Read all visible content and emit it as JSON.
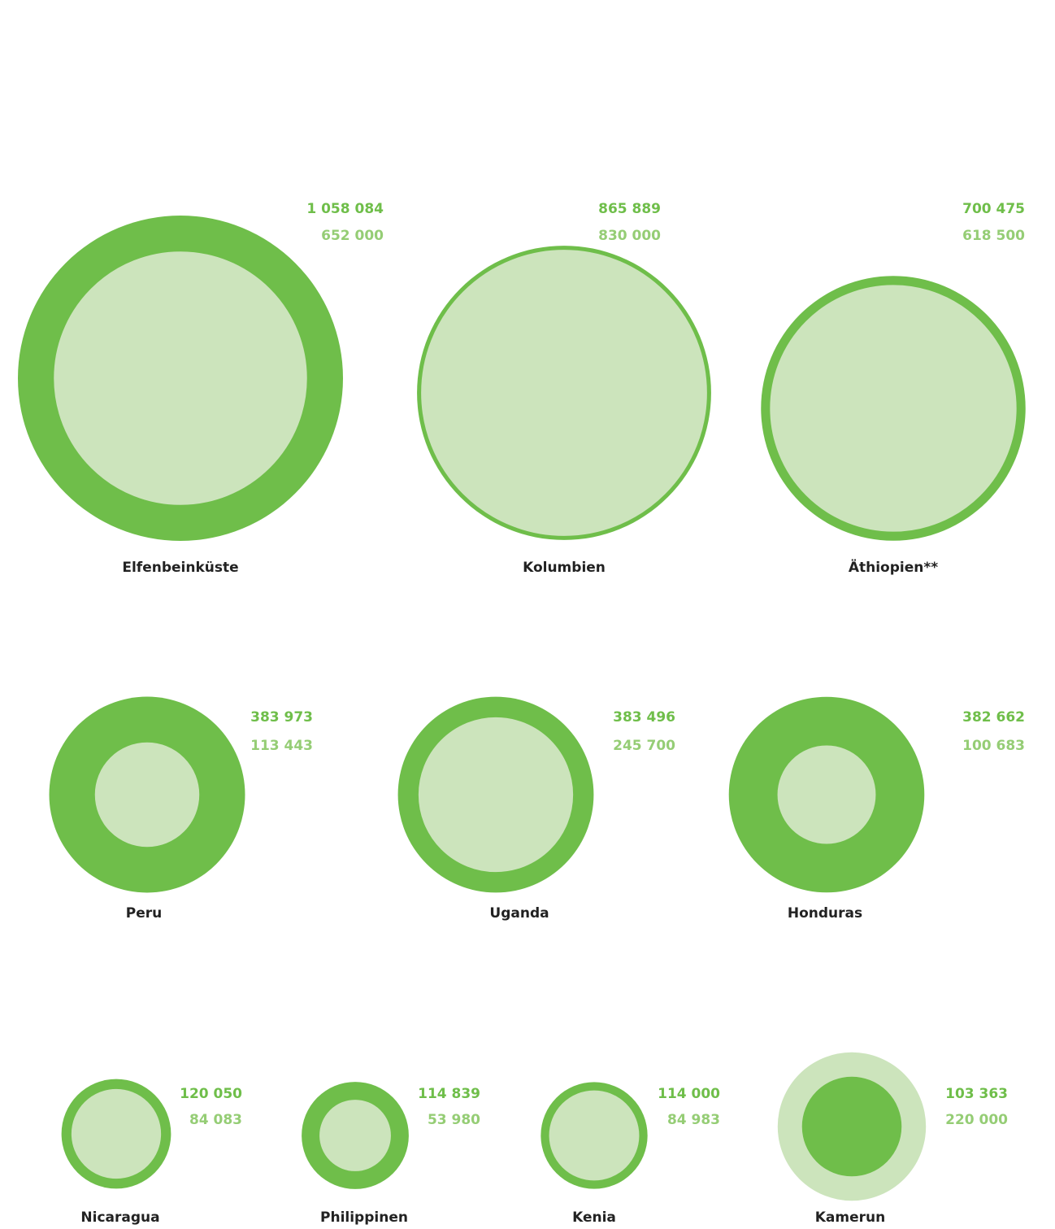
{
  "chart_data": {
    "type": "bubble",
    "categories": [
      "Elfenbeinküste",
      "Kolumbien",
      "Äthiopien**",
      "Peru",
      "Uganda",
      "Honduras",
      "Nicaragua",
      "Philippinen",
      "Kenia",
      "Kamerun"
    ],
    "series": [
      {
        "color": "#6fbe4a",
        "values": [
          1058084,
          865889,
          700475,
          383973,
          383496,
          382662,
          120050,
          114839,
          114000,
          103363
        ],
        "value_labels": [
          "1 058 084",
          "865 889",
          "700 475",
          "383 973",
          "383 496",
          "382 662",
          "120 050",
          "114 839",
          "114 000",
          "103 363"
        ]
      },
      {
        "color": "#cce4bc",
        "values": [
          652000,
          830000,
          618500,
          113443,
          245700,
          100683,
          84083,
          53980,
          84983,
          220000
        ],
        "value_labels": [
          "652 000",
          "830 000",
          "618 500",
          "113 443",
          "245 700",
          "100 683",
          "84 083",
          "53 980",
          "84 983",
          "220 000"
        ]
      }
    ]
  }
}
